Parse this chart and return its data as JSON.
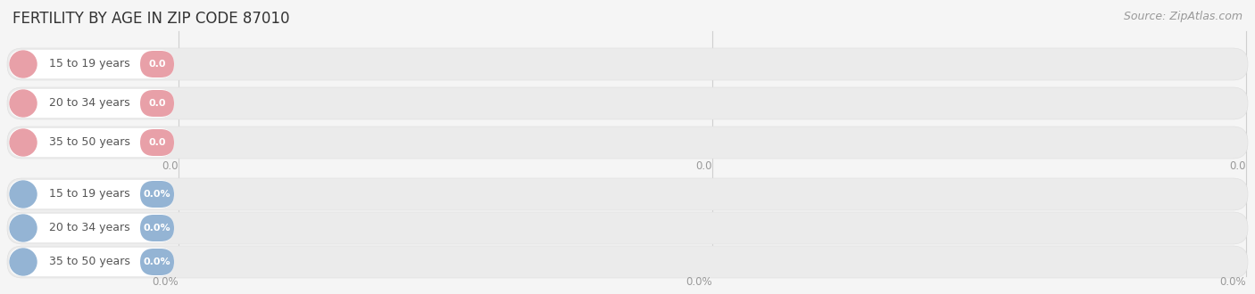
{
  "title": "FERTILITY BY AGE IN ZIP CODE 87010",
  "source_text": "Source: ZipAtlas.com",
  "top_section": {
    "categories": [
      "15 to 19 years",
      "20 to 34 years",
      "35 to 50 years"
    ],
    "values": [
      0.0,
      0.0,
      0.0
    ],
    "bar_color": "#e8a0a8",
    "value_label": "0.0",
    "tick_labels": [
      "0.0",
      "0.0",
      "0.0"
    ]
  },
  "bottom_section": {
    "categories": [
      "15 to 19 years",
      "20 to 34 years",
      "35 to 50 years"
    ],
    "values": [
      0.0,
      0.0,
      0.0
    ],
    "bar_color": "#94b4d4",
    "value_label": "0.0%",
    "tick_labels": [
      "0.0%",
      "0.0%",
      "0.0%"
    ]
  },
  "background_color": "#f5f5f5",
  "row_bg_color": "#ebebeb",
  "row_border_color": "#dddddd",
  "grid_line_color": "#d0d0d0",
  "tick_text_color": "#999999",
  "title_color": "#333333",
  "source_color": "#999999",
  "label_text_color": "#555555",
  "title_fontsize": 12,
  "label_fontsize": 9,
  "value_fontsize": 8,
  "tick_fontsize": 8.5,
  "source_fontsize": 9
}
